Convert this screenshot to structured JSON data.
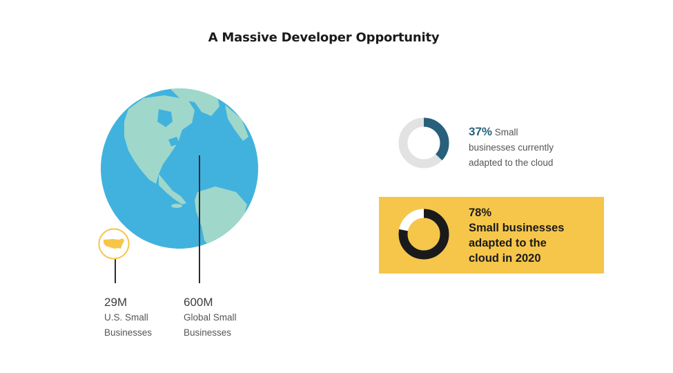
{
  "title": "A Massive Developer Opportunity",
  "us_stat": {
    "value": "29M",
    "label_line1": "U.S. Small",
    "label_line2": "Businesses"
  },
  "global_stat": {
    "value": "600M",
    "label_line1": "Global Small",
    "label_line2": "Businesses"
  },
  "cloud_current": {
    "percent_text": "37%",
    "percent_value": 37,
    "label_line1": "Small",
    "label_line2": "businesses currently",
    "label_line3": "adapted to the cloud"
  },
  "cloud_2020": {
    "percent_text": "78%",
    "percent_value": 78,
    "label_line1": "Small businesses",
    "label_line2": "adapted to the",
    "label_line3": "cloud in 2020"
  },
  "colors": {
    "ocean": "#41b2de",
    "land": "#9fd7cb",
    "badge": "#f5c64a",
    "donut_track": "#e2e2e2",
    "donut_current": "#27607a",
    "donut_2020": "#1a1a1a",
    "highlight_bg": "#f5c64a"
  }
}
